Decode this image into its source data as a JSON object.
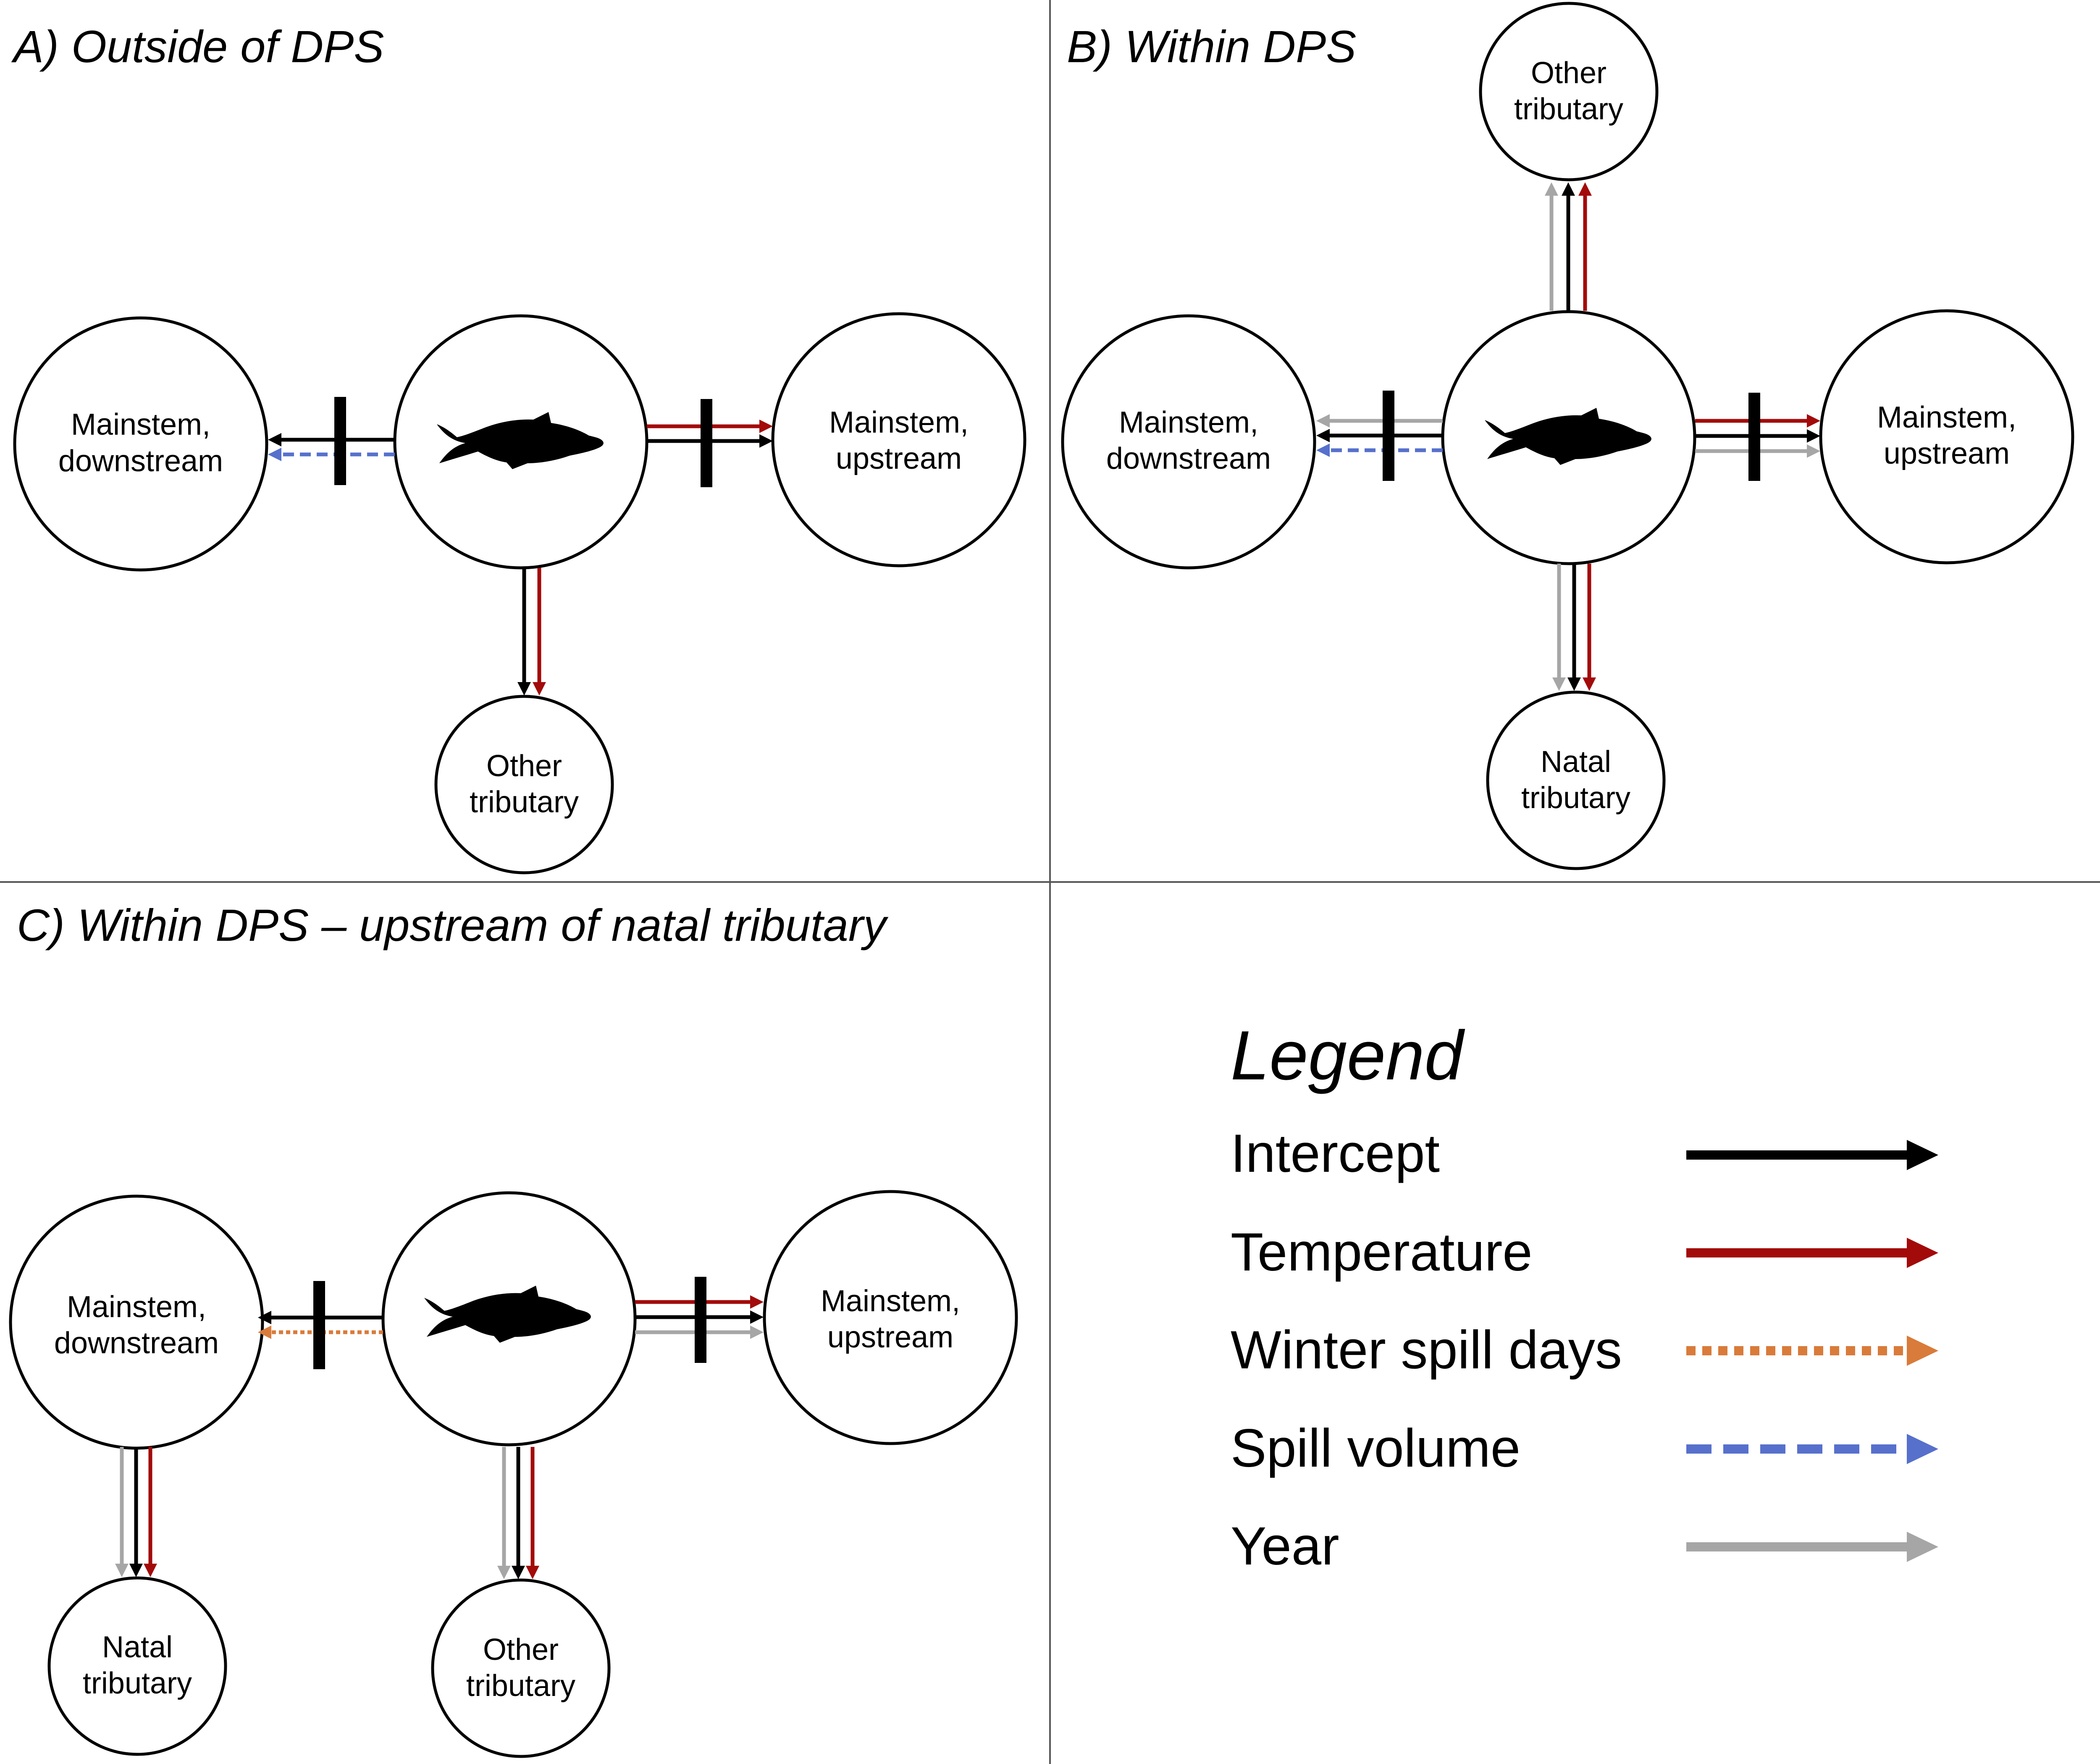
{
  "colors": {
    "intercept": "#000000",
    "temperature": "#a30a0a",
    "winter_spill_days": "#d97b3a",
    "spill_volume": "#5670cc",
    "year": "#a6a6a6"
  },
  "icons": {
    "fish": "fish-silhouette-icon",
    "barrier": "dam-barrier-icon"
  },
  "panels": {
    "a": {
      "title": "A) Outside of DPS",
      "downstream": [
        "Mainstem,",
        "downstream"
      ],
      "upstream": [
        "Mainstem,",
        "upstream"
      ],
      "tributary": [
        "Other",
        "tributary"
      ]
    },
    "b": {
      "title": "B) Within DPS",
      "other_tributary": [
        "Other",
        "tributary"
      ],
      "downstream": [
        "Mainstem,",
        "downstream"
      ],
      "upstream": [
        "Mainstem,",
        "upstream"
      ],
      "natal_tributary": [
        "Natal",
        "tributary"
      ]
    },
    "c": {
      "title": "C) Within DPS – upstream of natal tributary",
      "downstream": [
        "Mainstem,",
        "downstream"
      ],
      "upstream": [
        "Mainstem,",
        "upstream"
      ],
      "natal_tributary": [
        "Natal",
        "tributary"
      ],
      "other_tributary": [
        "Other",
        "tributary"
      ]
    }
  },
  "legend": {
    "title": "Legend",
    "items": [
      {
        "label": "Intercept",
        "style": "solid",
        "color_key": "intercept"
      },
      {
        "label": "Temperature",
        "style": "solid",
        "color_key": "temperature"
      },
      {
        "label": "Winter spill days",
        "style": "dotted",
        "color_key": "winter_spill_days"
      },
      {
        "label": "Spill volume",
        "style": "dashed",
        "color_key": "spill_volume"
      },
      {
        "label": "Year",
        "style": "solid",
        "color_key": "year"
      }
    ]
  }
}
